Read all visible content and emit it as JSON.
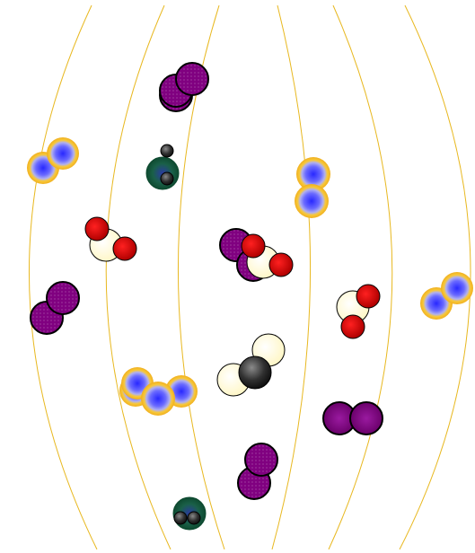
{
  "colors": {
    "background": "#ffffff",
    "orbit_line": "#e8b820",
    "purple_atom": "#800080",
    "red_atom": "#ee0000",
    "cream_atom": "#fffde0",
    "carbon_atom": "#303030",
    "blue_halo_core": "#3030ff",
    "blue_halo_ring": "#f5c030",
    "teal_atom": "#1a6040"
  },
  "molecules": [
    {
      "kind": "purple-pair",
      "icon": "purple-diatomic-icon"
    },
    {
      "kind": "halo-pair",
      "icon": "halo-diatomic-icon"
    },
    {
      "kind": "teal-cluster",
      "icon": "teal-carbon-cluster-icon"
    },
    {
      "kind": "halo-pair",
      "icon": "halo-diatomic-icon"
    },
    {
      "kind": "water",
      "icon": "water-molecule-icon"
    },
    {
      "kind": "purple-pair",
      "icon": "purple-diatomic-icon"
    },
    {
      "kind": "water",
      "icon": "water-molecule-icon"
    },
    {
      "kind": "purple-pair",
      "icon": "purple-diatomic-icon"
    },
    {
      "kind": "water",
      "icon": "water-molecule-icon"
    },
    {
      "kind": "halo-pair",
      "icon": "halo-diatomic-icon"
    },
    {
      "kind": "methane-like",
      "icon": "carbon-hydrogen-molecule-icon"
    },
    {
      "kind": "halo-triple",
      "icon": "halo-cluster-icon"
    },
    {
      "kind": "purple-pair",
      "icon": "purple-diatomic-icon"
    },
    {
      "kind": "purple-pair",
      "icon": "purple-diatomic-icon"
    },
    {
      "kind": "teal-cluster",
      "icon": "teal-carbon-cluster-icon"
    }
  ]
}
